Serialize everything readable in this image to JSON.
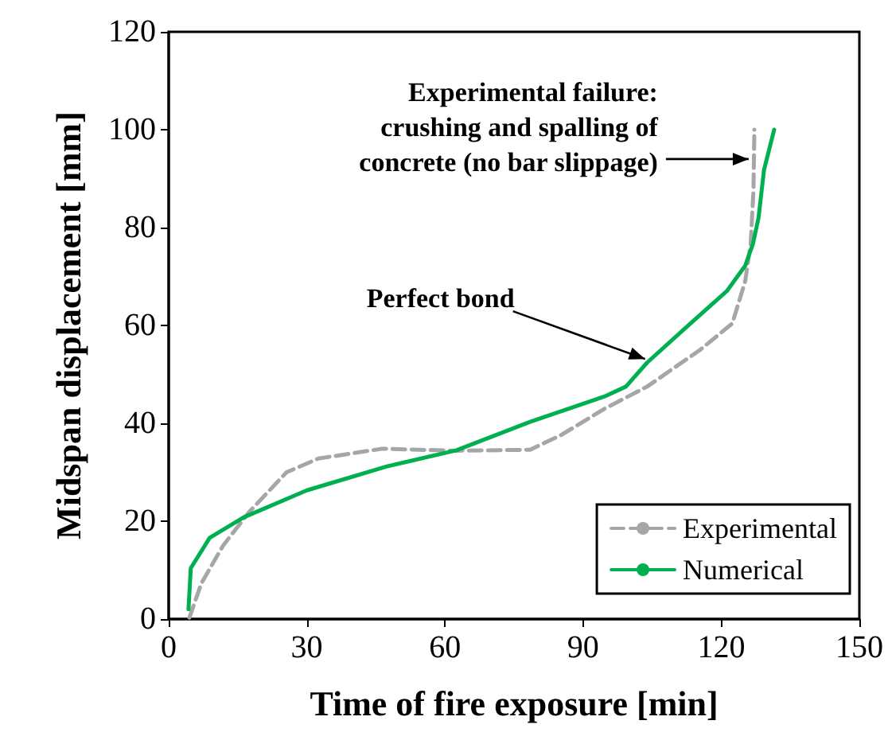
{
  "chart_data": {
    "type": "line",
    "xlabel": "Time of fire exposure [min]",
    "ylabel": "Midspan displacement [mm]",
    "xlim": [
      0,
      150
    ],
    "xticks": [
      0,
      30,
      60,
      90,
      120,
      150
    ],
    "ylim": [
      0,
      120
    ],
    "yticks": [
      0,
      20,
      40,
      60,
      80,
      100,
      120
    ],
    "grid": false,
    "legend": "bottom right",
    "marker": "none",
    "series": [
      {
        "name": "Experimental",
        "color": "#a6a6a6",
        "line_style": "dashed",
        "x": [
          4.5,
          7.1,
          11.8,
          17.5,
          25.6,
          32.5,
          46.3,
          62.5,
          78.5,
          85.4,
          94.7,
          103.9,
          115.4,
          122.4,
          125.2,
          126.4,
          127,
          127.2
        ],
        "values": [
          0.3,
          7.3,
          15,
          21.9,
          30,
          32.8,
          34.8,
          34.4,
          34.6,
          37.7,
          43,
          47.5,
          55,
          60.4,
          69,
          76.7,
          87.5,
          100
        ]
      },
      {
        "name": "Numerical",
        "color": "#00b050",
        "line_style": "solid",
        "x": [
          4.3,
          4.8,
          8.9,
          16.3,
          30,
          47.4,
          62.5,
          78.5,
          94.7,
          99.3,
          103.9,
          112,
          121.2,
          125.2,
          126.9,
          128.1,
          129.3,
          130.7,
          131.5
        ],
        "values": [
          2,
          10.4,
          16.6,
          20.8,
          26.3,
          31.2,
          34.5,
          40.3,
          45.5,
          47.5,
          52.4,
          59.3,
          67,
          72.2,
          76.7,
          82,
          91.8,
          97,
          100
        ]
      }
    ],
    "annotations": [
      {
        "text": "Experimental failure:\ncrushing and spalling of\nconcrete (no bar slippage)",
        "x": 127,
        "y": 94
      },
      {
        "text": "Perfect bond",
        "x": 104.5,
        "y": 52.5
      }
    ]
  }
}
